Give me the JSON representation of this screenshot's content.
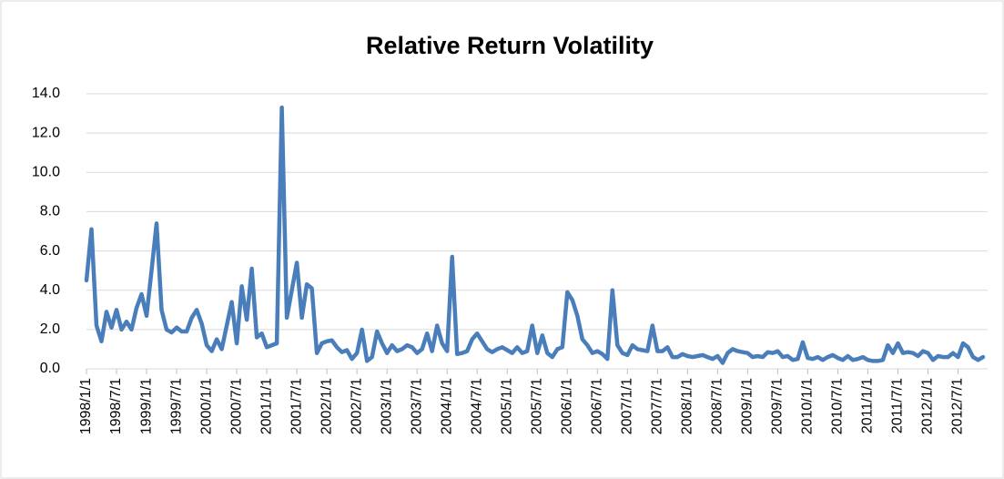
{
  "chart_data": {
    "type": "line",
    "title": "Relative Return Volatility",
    "categories": [
      "1998/1/1",
      null,
      null,
      null,
      null,
      null,
      "1998/7/1",
      null,
      null,
      null,
      null,
      null,
      "1999/1/1",
      null,
      null,
      null,
      null,
      null,
      "1999/7/1",
      null,
      null,
      null,
      null,
      null,
      "2000/1/1",
      null,
      null,
      null,
      null,
      null,
      "2000/7/1",
      null,
      null,
      null,
      null,
      null,
      "2001/1/1",
      null,
      null,
      null,
      null,
      null,
      "2001/7/1",
      null,
      null,
      null,
      null,
      null,
      "2002/1/1",
      null,
      null,
      null,
      null,
      null,
      "2002/7/1",
      null,
      null,
      null,
      null,
      null,
      "2003/1/1",
      null,
      null,
      null,
      null,
      null,
      "2003/7/1",
      null,
      null,
      null,
      null,
      null,
      "2004/1/1",
      null,
      null,
      null,
      null,
      null,
      "2004/7/1",
      null,
      null,
      null,
      null,
      null,
      "2005/1/1",
      null,
      null,
      null,
      null,
      null,
      "2005/7/1",
      null,
      null,
      null,
      null,
      null,
      "2006/1/1",
      null,
      null,
      null,
      null,
      null,
      "2006/7/1",
      null,
      null,
      null,
      null,
      null,
      "2007/1/1",
      null,
      null,
      null,
      null,
      null,
      "2007/7/1",
      null,
      null,
      null,
      null,
      null,
      "2008/1/1",
      null,
      null,
      null,
      null,
      null,
      "2008/7/1",
      null,
      null,
      null,
      null,
      null,
      "2009/1/1",
      null,
      null,
      null,
      null,
      null,
      "2009/7/1",
      null,
      null,
      null,
      null,
      null,
      "2010/1/1",
      null,
      null,
      null,
      null,
      null,
      "2010/7/1",
      null,
      null,
      null,
      null,
      null,
      "2011/1/1",
      null,
      null,
      null,
      null,
      null,
      "2011/7/1",
      null,
      null,
      null,
      null,
      null,
      "2012/1/1",
      null,
      null,
      null,
      null,
      null,
      "2012/7/1",
      null,
      null,
      null,
      null,
      null
    ],
    "color": "#4a7ebb",
    "values": [
      4.5,
      7.1,
      2.2,
      1.4,
      2.9,
      2.1,
      3.0,
      2.0,
      2.4,
      2.0,
      3.1,
      3.8,
      2.7,
      5.0,
      7.4,
      3.0,
      2.0,
      1.85,
      2.1,
      1.9,
      1.9,
      2.6,
      3.0,
      2.3,
      1.2,
      0.9,
      1.5,
      1.0,
      2.2,
      3.4,
      1.3,
      4.2,
      2.5,
      5.1,
      1.6,
      1.8,
      1.1,
      1.2,
      1.3,
      13.3,
      2.6,
      4.0,
      5.4,
      2.6,
      4.3,
      4.1,
      0.8,
      1.3,
      1.4,
      1.45,
      1.1,
      0.85,
      0.95,
      0.5,
      0.8,
      2.0,
      0.4,
      0.6,
      1.9,
      1.3,
      0.8,
      1.2,
      0.9,
      1.0,
      1.2,
      1.1,
      0.8,
      1.0,
      1.8,
      0.9,
      2.2,
      1.3,
      0.9,
      5.7,
      0.75,
      0.8,
      0.9,
      1.5,
      1.8,
      1.4,
      1.0,
      0.85,
      1.0,
      1.1,
      0.95,
      0.8,
      1.1,
      0.8,
      0.9,
      2.2,
      0.8,
      1.7,
      0.8,
      0.6,
      1.0,
      1.1,
      3.9,
      3.5,
      2.7,
      1.5,
      1.2,
      0.8,
      0.9,
      0.75,
      0.5,
      4.0,
      1.2,
      0.8,
      0.7,
      1.2,
      1.0,
      0.95,
      0.9,
      2.2,
      0.9,
      0.9,
      1.1,
      0.6,
      0.6,
      0.75,
      0.65,
      0.6,
      0.65,
      0.7,
      0.6,
      0.5,
      0.65,
      0.3,
      0.8,
      1.0,
      0.9,
      0.85,
      0.8,
      0.6,
      0.65,
      0.6,
      0.85,
      0.8,
      0.9,
      0.6,
      0.65,
      0.45,
      0.5,
      1.35,
      0.55,
      0.5,
      0.6,
      0.45,
      0.6,
      0.7,
      0.55,
      0.45,
      0.65,
      0.45,
      0.5,
      0.6,
      0.45,
      0.4,
      0.4,
      0.45,
      1.2,
      0.8,
      1.3,
      0.8,
      0.85,
      0.8,
      0.65,
      0.9,
      0.8,
      0.45,
      0.65,
      0.6,
      0.6,
      0.8,
      0.6,
      1.3,
      1.1,
      0.6,
      0.45,
      0.6
    ],
    "ylim": [
      0,
      14
    ],
    "yticks": [
      {
        "value": 0,
        "label": "0.0"
      },
      {
        "value": 2,
        "label": "2.0"
      },
      {
        "value": 4,
        "label": "4.0"
      },
      {
        "value": 6,
        "label": "6.0"
      },
      {
        "value": 8,
        "label": "8.0"
      },
      {
        "value": 10,
        "label": "10.0"
      },
      {
        "value": 12,
        "label": "12.0"
      },
      {
        "value": 14,
        "label": "14.0"
      }
    ],
    "grid": true
  }
}
